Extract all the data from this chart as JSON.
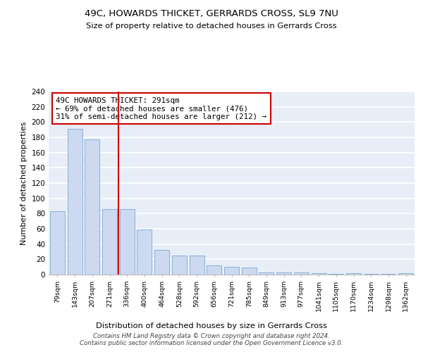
{
  "title": "49C, HOWARDS THICKET, GERRARDS CROSS, SL9 7NU",
  "subtitle": "Size of property relative to detached houses in Gerrards Cross",
  "xlabel": "Distribution of detached houses by size in Gerrards Cross",
  "ylabel": "Number of detached properties",
  "categories": [
    "79sqm",
    "143sqm",
    "207sqm",
    "271sqm",
    "336sqm",
    "400sqm",
    "464sqm",
    "528sqm",
    "592sqm",
    "656sqm",
    "721sqm",
    "785sqm",
    "849sqm",
    "913sqm",
    "977sqm",
    "1041sqm",
    "1105sqm",
    "1170sqm",
    "1234sqm",
    "1298sqm",
    "1362sqm"
  ],
  "values": [
    83,
    191,
    177,
    86,
    86,
    59,
    32,
    25,
    25,
    12,
    10,
    9,
    3,
    3,
    3,
    2,
    1,
    2,
    1,
    1,
    2
  ],
  "bar_color": "#ccd9f0",
  "bar_edge_color": "#8ab0d8",
  "background_color": "#e8eef8",
  "grid_color": "#ffffff",
  "vline_x": 3.5,
  "vline_color": "#cc0000",
  "annotation_line1": "49C HOWARDS THICKET: 291sqm",
  "annotation_line2": "← 69% of detached houses are smaller (476)",
  "annotation_line3": "31% of semi-detached houses are larger (212) →",
  "annotation_box_color": "#ffffff",
  "annotation_box_edge": "#cc0000",
  "footer": "Contains HM Land Registry data © Crown copyright and database right 2024.\nContains public sector information licensed under the Open Government Licence v3.0.",
  "ylim": [
    0,
    240
  ],
  "yticks": [
    0,
    20,
    40,
    60,
    80,
    100,
    120,
    140,
    160,
    180,
    200,
    220,
    240
  ]
}
